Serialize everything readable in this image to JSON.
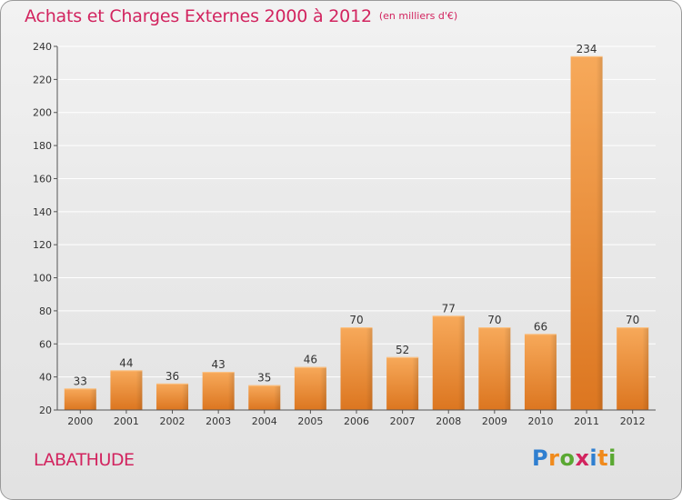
{
  "header": {
    "title": "Achats et Charges Externes 2000 à 2012",
    "subtitle": "(en milliers d'€)"
  },
  "footer": {
    "place_name": "LABATHUDE",
    "brand": "Proxiti"
  },
  "colors": {
    "title": "#d2245f",
    "bar_light": "#f6a450",
    "bar_dark": "#e07a1e",
    "axis": "#555555",
    "grid": "#ffffff"
  },
  "chart_data": {
    "type": "bar",
    "categories": [
      "2000",
      "2001",
      "2002",
      "2003",
      "2004",
      "2005",
      "2006",
      "2007",
      "2008",
      "2009",
      "2010",
      "2011",
      "2012"
    ],
    "values": [
      33,
      44,
      36,
      43,
      35,
      46,
      70,
      52,
      77,
      70,
      66,
      234,
      70
    ],
    "title": "Achats et Charges Externes 2000 à 2012",
    "subtitle": "(en milliers d'€)",
    "xlabel": "",
    "ylabel": "",
    "ylim": [
      20,
      240
    ],
    "yticks": [
      20,
      40,
      60,
      80,
      100,
      120,
      140,
      160,
      180,
      200,
      220,
      240
    ],
    "grid": true,
    "data_labels": true
  }
}
